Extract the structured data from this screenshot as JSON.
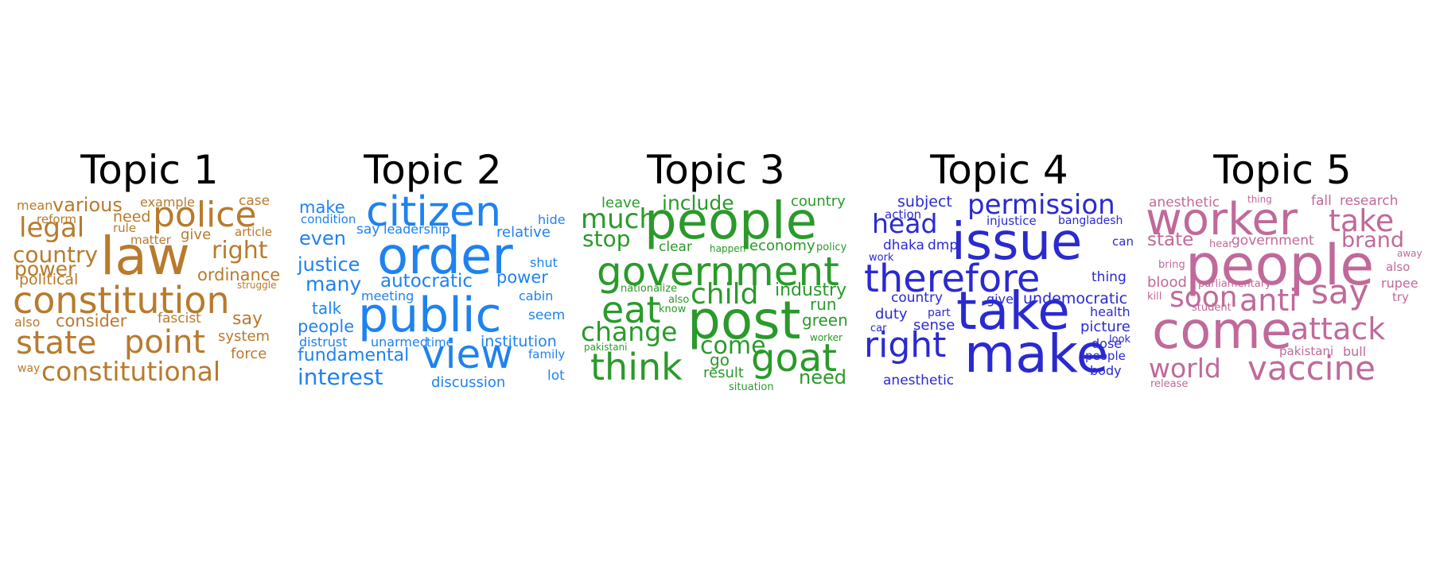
{
  "topics": [
    {
      "title": "Topic 1",
      "color": "#b87a2c",
      "words": [
        "mean",
        "various",
        "example",
        "case",
        "reform",
        "need",
        "rule",
        "police",
        "legal",
        "law",
        "matter",
        "give",
        "article",
        "country",
        "right",
        "power",
        "ordinance",
        "political",
        "struggle",
        "constitution",
        "also",
        "consider",
        "fascist",
        "say",
        "state",
        "point",
        "system",
        "force",
        "way",
        "constitutional"
      ]
    },
    {
      "title": "Topic 2",
      "color": "#1e82f0",
      "words": [
        "make",
        "citizen",
        "condition",
        "hide",
        "even",
        "say",
        "leadership",
        "relative",
        "order",
        "justice",
        "shut",
        "many",
        "autocratic",
        "power",
        "meeting",
        "cabin",
        "talk",
        "public",
        "seem",
        "people",
        "distrust",
        "unarmed",
        "time",
        "institution",
        "fundamental",
        "view",
        "family",
        "interest",
        "lot",
        "discussion"
      ]
    },
    {
      "title": "Topic 3",
      "color": "#2a9a2a",
      "words": [
        "leave",
        "include",
        "country",
        "much",
        "people",
        "stop",
        "clear",
        "happen",
        "economy",
        "policy",
        "government",
        "nationalize",
        "industry",
        "child",
        "eat",
        "also",
        "run",
        "know",
        "post",
        "change",
        "green",
        "pakistani",
        "come",
        "worker",
        "think",
        "goat",
        "go",
        "result",
        "need",
        "situation"
      ]
    },
    {
      "title": "Topic 4",
      "color": "#2a2ad0",
      "words": [
        "subject",
        "permission",
        "action",
        "head",
        "injustice",
        "bangladesh",
        "issue",
        "dhaka",
        "dmp",
        "can",
        "work",
        "therefore",
        "thing",
        "country",
        "give",
        "undemocratic",
        "duty",
        "part",
        "take",
        "health",
        "car",
        "sense",
        "picture",
        "look",
        "right",
        "dose",
        "make",
        "people",
        "body",
        "anesthetic"
      ]
    },
    {
      "title": "Topic 5",
      "color": "#c0699a",
      "words": [
        "anesthetic",
        "thing",
        "fall",
        "research",
        "worker",
        "take",
        "state",
        "hear",
        "government",
        "brand",
        "away",
        "people",
        "bring",
        "also",
        "blood",
        "parliamentary",
        "rupee",
        "soon",
        "anti",
        "say",
        "kill",
        "try",
        "student",
        "come",
        "attack",
        "pakistani",
        "bull",
        "world",
        "vaccine",
        "release"
      ]
    }
  ]
}
